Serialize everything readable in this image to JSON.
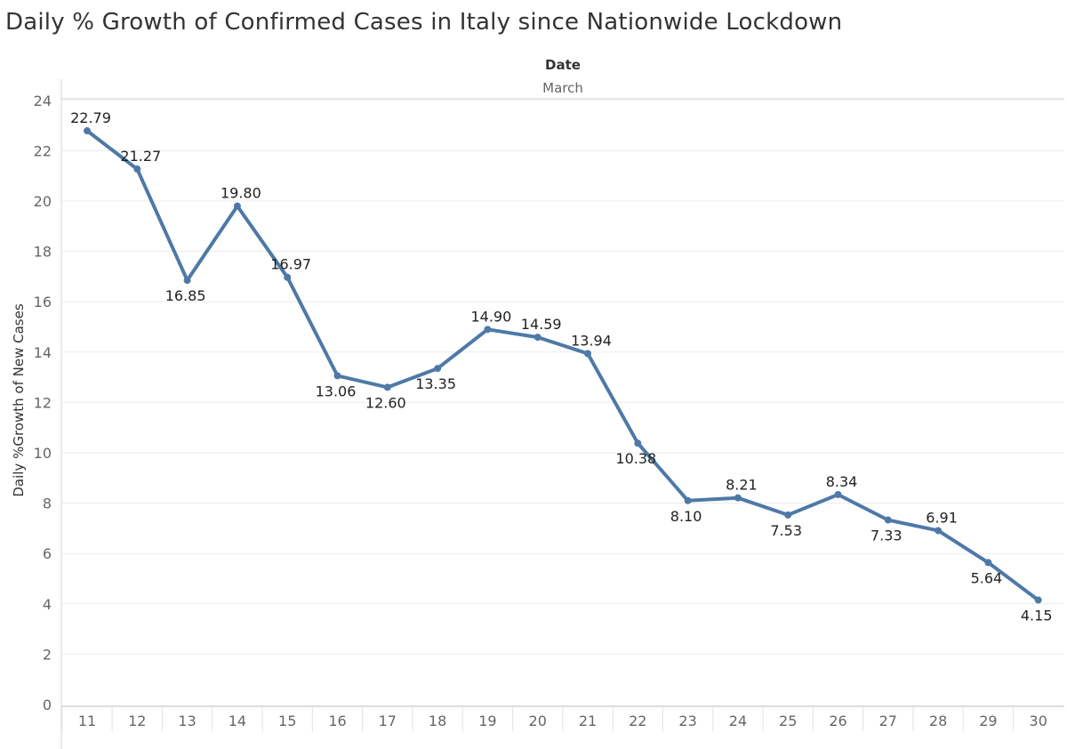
{
  "title": "Daily % Growth of Confirmed Cases in Italy since Nationwide Lockdown",
  "chart_data": {
    "type": "line",
    "title": "Daily % Growth of Confirmed Cases in Italy since Nationwide Lockdown",
    "column_header": "Date",
    "column_subheader": "March",
    "ylabel": "Daily %Growth of New Cases",
    "xlabel": "",
    "x": [
      "11",
      "12",
      "13",
      "14",
      "15",
      "16",
      "17",
      "18",
      "19",
      "20",
      "21",
      "22",
      "23",
      "24",
      "25",
      "26",
      "27",
      "28",
      "29",
      "30"
    ],
    "values": [
      22.79,
      21.27,
      16.85,
      19.8,
      16.97,
      13.06,
      12.6,
      13.35,
      14.9,
      14.59,
      13.94,
      10.38,
      8.1,
      8.21,
      7.53,
      8.34,
      7.33,
      6.91,
      5.64,
      4.15
    ],
    "labels": [
      "22.79",
      "21.27",
      "16.85",
      "19.80",
      "16.97",
      "13.06",
      "12.60",
      "13.35",
      "14.90",
      "14.59",
      "13.94",
      "10.38",
      "8.10",
      "8.21",
      "7.53",
      "8.34",
      "7.33",
      "6.91",
      "5.64",
      "4.15"
    ],
    "label_positions": [
      "above",
      "above",
      "below",
      "above",
      "above",
      "below",
      "below",
      "below",
      "above",
      "above",
      "above",
      "below",
      "below",
      "above",
      "below",
      "above",
      "below",
      "above",
      "below",
      "below"
    ],
    "ylim": [
      0,
      24
    ],
    "yticks": [
      "0",
      "2",
      "4",
      "6",
      "8",
      "10",
      "12",
      "14",
      "16",
      "18",
      "20",
      "22",
      "24"
    ],
    "grid": true,
    "legend": "none",
    "line_color": "#4e79a7"
  }
}
